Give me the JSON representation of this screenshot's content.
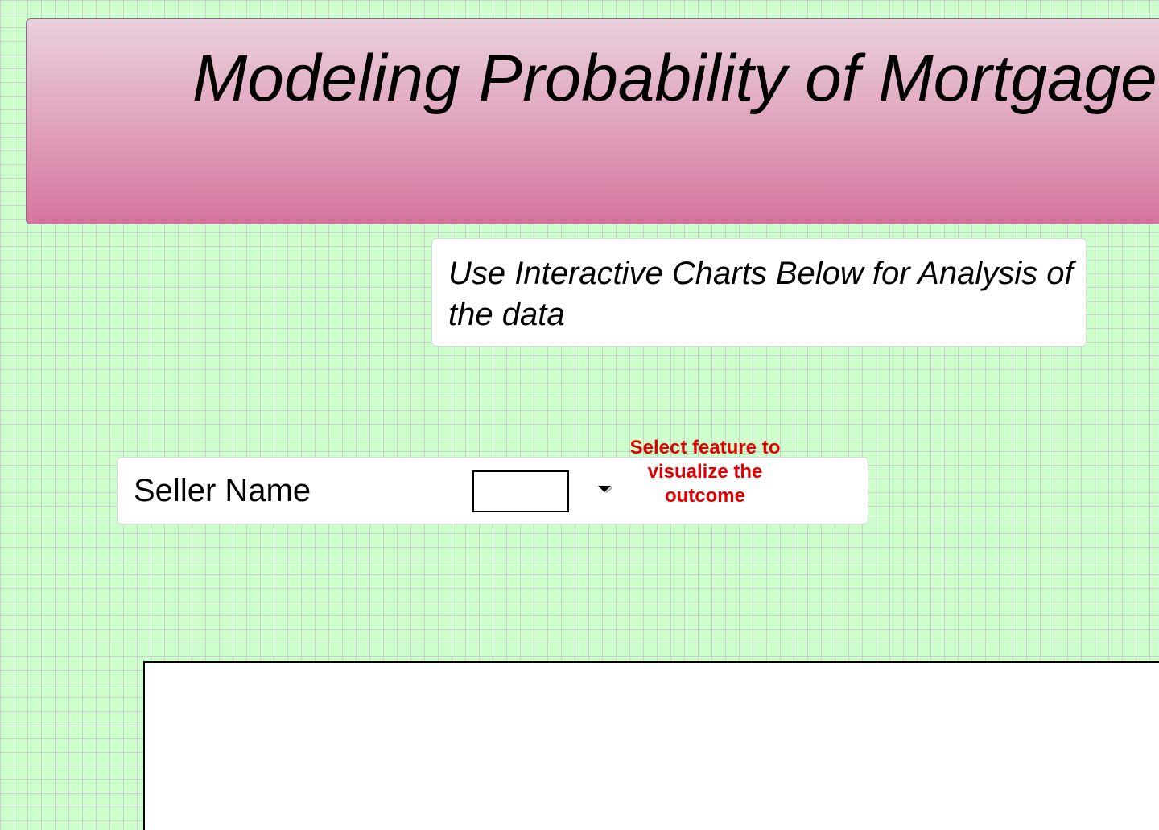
{
  "header": {
    "title": "Modeling Probability of Mortgage"
  },
  "intro": {
    "text": "Use Interactive Charts Below for Analysis of the data"
  },
  "selector": {
    "label": "Seller Name",
    "value": "",
    "hint": "Select feature to visualize the outcome"
  },
  "colors": {
    "background": "#ccffcc",
    "banner_top": "#e8d0dc",
    "banner_bottom": "#d4749c",
    "hint": "#e00000"
  },
  "icons": {
    "dropdown": "chevron-down-icon"
  }
}
